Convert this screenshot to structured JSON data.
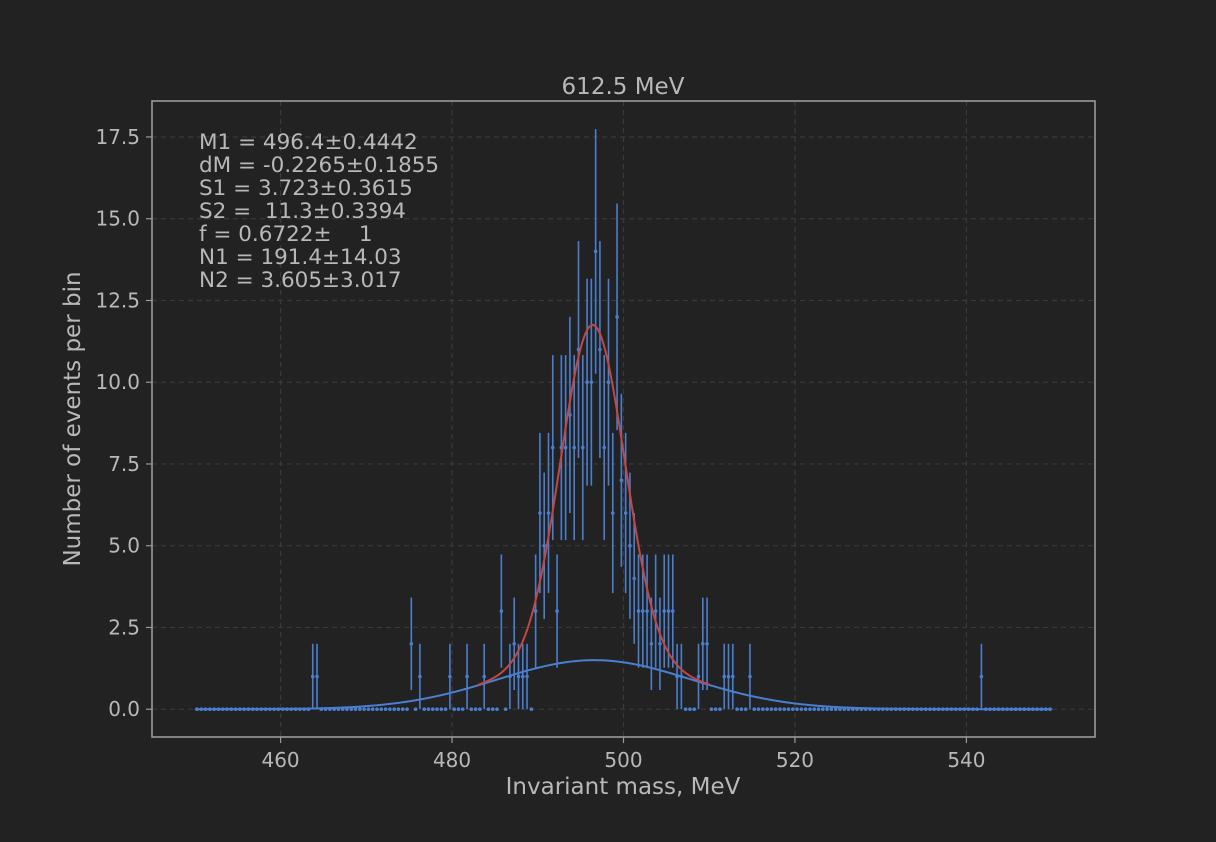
{
  "chart_data": {
    "type": "scatter",
    "title": "612.5 MeV",
    "xlabel": "Invariant mass, MeV",
    "ylabel": "Number of events per bin",
    "xlim": [
      445,
      555
    ],
    "ylim": [
      -0.85,
      18.6
    ],
    "grid": true,
    "x_ticks": [
      460,
      480,
      500,
      520,
      540
    ],
    "y_ticks": [
      0,
      2.5,
      5,
      7.5,
      10,
      12.5,
      15,
      17.5
    ],
    "x_tick_labels": [
      "460",
      "480",
      "500",
      "520",
      "540"
    ],
    "y_tick_labels": [
      "0.0",
      "2.5",
      "5.0",
      "7.5",
      "10.0",
      "12.5",
      "15.0",
      "17.5"
    ],
    "fit_params": [
      "M1 = 496.4±0.4442",
      "dM = -0.2265±0.1855",
      "S1 = 3.723±0.3615",
      "S2 =  11.3±0.3394",
      "f = 0.6722±    1",
      "N1 = 191.4±14.03",
      "N2 = 3.605±3.017"
    ],
    "histogram": {
      "x_range": [
        450,
        550
      ],
      "bin_width": 0.5,
      "nonzero_bins": [
        [
          463.75,
          1
        ],
        [
          464.25,
          1
        ],
        [
          475.25,
          2
        ],
        [
          476.25,
          1
        ],
        [
          479.75,
          1
        ],
        [
          481.75,
          1
        ],
        [
          483.75,
          1
        ],
        [
          485.75,
          3
        ],
        [
          486.75,
          1
        ],
        [
          487.25,
          2
        ],
        [
          487.75,
          1
        ],
        [
          488.25,
          1
        ],
        [
          488.75,
          1
        ],
        [
          489.75,
          3
        ],
        [
          490.25,
          6
        ],
        [
          490.75,
          5
        ],
        [
          491.25,
          6
        ],
        [
          491.75,
          8
        ],
        [
          492.25,
          3
        ],
        [
          492.75,
          8
        ],
        [
          493.25,
          8
        ],
        [
          493.75,
          9
        ],
        [
          494.25,
          8
        ],
        [
          494.75,
          11
        ],
        [
          495.25,
          8
        ],
        [
          495.75,
          10
        ],
        [
          496.25,
          10
        ],
        [
          496.75,
          14
        ],
        [
          497.25,
          11
        ],
        [
          497.75,
          8
        ],
        [
          498.25,
          10
        ],
        [
          498.75,
          6
        ],
        [
          499.25,
          12
        ],
        [
          499.75,
          7
        ],
        [
          500.25,
          6
        ],
        [
          500.75,
          5
        ],
        [
          501.25,
          4
        ],
        [
          501.75,
          3
        ],
        [
          502.25,
          3
        ],
        [
          502.75,
          3
        ],
        [
          503.25,
          2
        ],
        [
          503.75,
          3
        ],
        [
          504.25,
          2
        ],
        [
          504.75,
          3
        ],
        [
          505.25,
          3
        ],
        [
          505.75,
          3
        ],
        [
          506.25,
          1
        ],
        [
          506.75,
          1
        ],
        [
          508.75,
          1
        ],
        [
          509.25,
          2
        ],
        [
          509.75,
          2
        ],
        [
          511.75,
          1
        ],
        [
          512.25,
          1
        ],
        [
          512.75,
          1
        ],
        [
          514.75,
          1
        ],
        [
          541.75,
          1
        ]
      ]
    },
    "series": [
      {
        "color": "#c04848",
        "curve": "total fit",
        "components": {
          "narrow": {
            "N": 191.4,
            "mu": 496.4,
            "sigma": 3.723,
            "f": 0.6722
          },
          "wide": {
            "N": 3.605,
            "mu": 496.6,
            "sigma": 11.3
          }
        }
      },
      {
        "color": "#4a7fd0",
        "curve": "wide component",
        "gaussian": {
          "amplitude": 1.5,
          "mu": 496.6,
          "sigma": 11.3
        }
      }
    ],
    "colors": {
      "background": "#222222",
      "axes_frame": "#9a9a9a",
      "grid": "#3a3a3a",
      "points": "#4a7fd0",
      "fit": "#c04848"
    }
  }
}
